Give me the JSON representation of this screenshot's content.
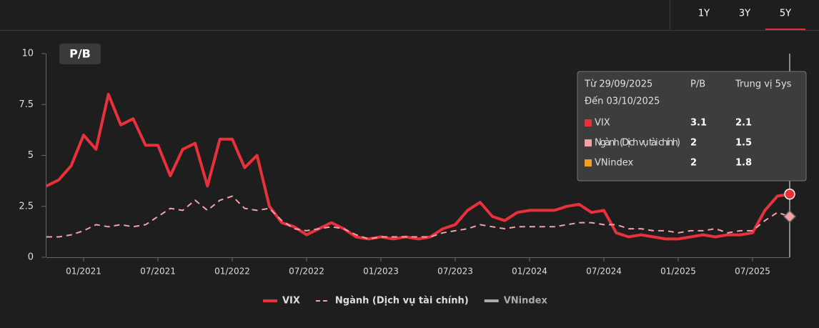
{
  "tabs": [
    "1Y",
    "3Y",
    "5Y"
  ],
  "active_tab": "5Y",
  "chart_data": {
    "type": "line",
    "title": "P/B",
    "x": [
      "10/2020",
      "11/2020",
      "12/2020",
      "01/2021",
      "02/2021",
      "03/2021",
      "04/2021",
      "05/2021",
      "06/2021",
      "07/2021",
      "08/2021",
      "09/2021",
      "10/2021",
      "11/2021",
      "12/2021",
      "01/2022",
      "02/2022",
      "03/2022",
      "04/2022",
      "05/2022",
      "06/2022",
      "07/2022",
      "08/2022",
      "09/2022",
      "10/2022",
      "11/2022",
      "12/2022",
      "01/2023",
      "02/2023",
      "03/2023",
      "04/2023",
      "05/2023",
      "06/2023",
      "07/2023",
      "08/2023",
      "09/2023",
      "10/2023",
      "11/2023",
      "12/2023",
      "01/2024",
      "02/2024",
      "03/2024",
      "04/2024",
      "05/2024",
      "06/2024",
      "07/2024",
      "08/2024",
      "09/2024",
      "10/2024",
      "11/2024",
      "12/2024",
      "01/2025",
      "02/2025",
      "03/2025",
      "04/2025",
      "05/2025",
      "06/2025",
      "07/2025",
      "08/2025",
      "09/2025",
      "10/2025"
    ],
    "xticks": [
      "01/2021",
      "07/2021",
      "01/2022",
      "07/2022",
      "01/2023",
      "07/2023",
      "01/2024",
      "07/2024",
      "01/2025",
      "07/2025"
    ],
    "ylim": [
      0,
      10
    ],
    "yticks": [
      0,
      2.5,
      5,
      7.5,
      10
    ],
    "series": [
      {
        "name": "VIX",
        "color": "#e8313a",
        "style": "solid",
        "visible": true,
        "values": [
          3.5,
          3.8,
          4.5,
          6.0,
          5.3,
          8.0,
          6.5,
          6.8,
          5.5,
          5.5,
          4.0,
          5.3,
          5.6,
          3.5,
          5.8,
          5.8,
          4.4,
          5.0,
          2.5,
          1.7,
          1.5,
          1.1,
          1.4,
          1.7,
          1.4,
          1.0,
          0.9,
          1.0,
          0.9,
          1.0,
          0.9,
          1.0,
          1.4,
          1.6,
          2.3,
          2.7,
          2.0,
          1.8,
          2.2,
          2.3,
          2.3,
          2.3,
          2.5,
          2.6,
          2.2,
          2.3,
          1.2,
          1.0,
          1.1,
          1.0,
          0.9,
          0.9,
          1.0,
          1.1,
          1.0,
          1.1,
          1.1,
          1.2,
          2.3,
          3.0,
          3.1
        ]
      },
      {
        "name": "Ngành (Dịch vụ tài chính)",
        "color": "#f4a0a8",
        "style": "dashed",
        "visible": true,
        "values": [
          1.0,
          1.0,
          1.1,
          1.3,
          1.6,
          1.5,
          1.6,
          1.5,
          1.6,
          2.0,
          2.4,
          2.3,
          2.8,
          2.3,
          2.8,
          3.0,
          2.4,
          2.3,
          2.4,
          1.8,
          1.4,
          1.3,
          1.4,
          1.5,
          1.4,
          1.1,
          0.9,
          1.0,
          1.0,
          1.0,
          1.0,
          1.0,
          1.2,
          1.3,
          1.4,
          1.6,
          1.5,
          1.4,
          1.5,
          1.5,
          1.5,
          1.5,
          1.6,
          1.7,
          1.7,
          1.6,
          1.6,
          1.4,
          1.4,
          1.3,
          1.3,
          1.2,
          1.3,
          1.3,
          1.4,
          1.2,
          1.3,
          1.3,
          1.8,
          2.2,
          2.0
        ]
      },
      {
        "name": "VNindex",
        "color": "#f0a020",
        "style": "solid",
        "visible": false
      }
    ],
    "tooltip": {
      "from": "Từ 29/09/2025",
      "to": "Đến 03/10/2025",
      "headers": [
        "P/B",
        "Trung vị 5ys"
      ],
      "rows": [
        [
          3.1,
          2.1
        ],
        [
          2,
          1.5
        ],
        [
          2,
          1.8
        ]
      ]
    }
  }
}
